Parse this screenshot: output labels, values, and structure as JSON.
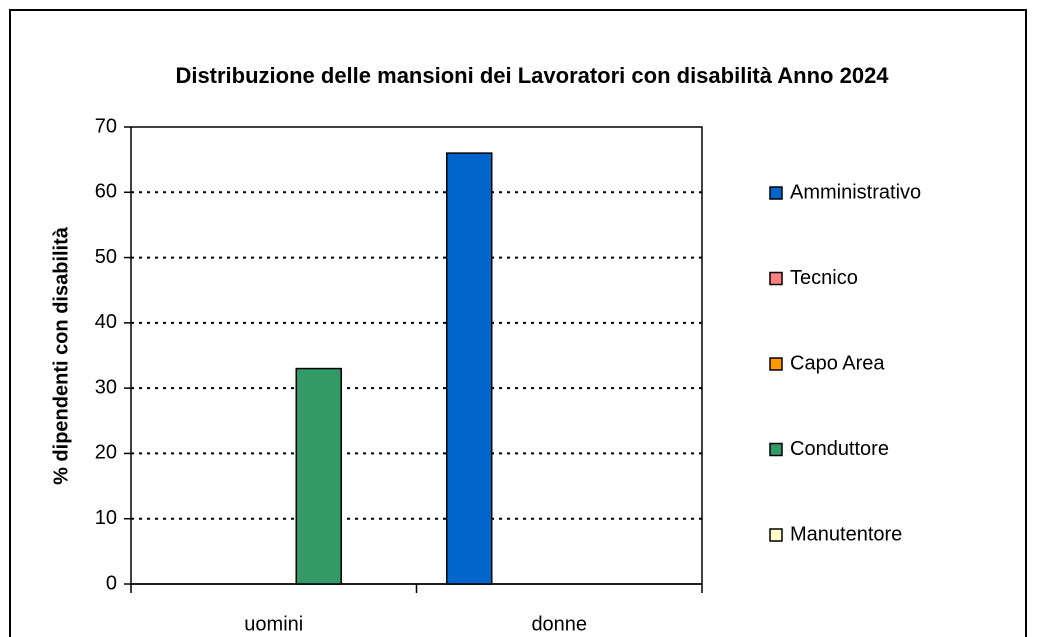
{
  "chart_data": {
    "type": "bar",
    "title": "Distribuzione delle mansioni dei Lavoratori con disabilità Anno 2024",
    "y_label": "% dipendenti con disabilità",
    "categories": [
      "uomini",
      "donne"
    ],
    "series": [
      {
        "name": "Amministrativo",
        "color": "#0066cc",
        "values": [
          0,
          66
        ]
      },
      {
        "name": "Tecnico",
        "color": "#ff8080",
        "values": [
          0,
          0
        ]
      },
      {
        "name": "Capo Area",
        "color": "#ff9900",
        "values": [
          0,
          0
        ]
      },
      {
        "name": "Conduttore",
        "color": "#339966",
        "values": [
          33,
          0
        ]
      },
      {
        "name": "Manutentore",
        "color": "#ffffcc",
        "values": [
          0,
          0
        ]
      }
    ],
    "ylim": [
      0,
      70
    ],
    "yticks": [
      0,
      10,
      20,
      30,
      40,
      50,
      60,
      70
    ],
    "grid": true,
    "legend": "right"
  }
}
